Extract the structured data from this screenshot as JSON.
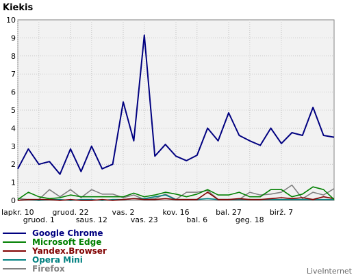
{
  "chart_data": {
    "type": "line",
    "title": "Kiekis",
    "ylim": [
      0,
      10
    ],
    "y_ticks": [
      "0",
      "1",
      "2",
      "3",
      "4",
      "5",
      "6",
      "7",
      "8",
      "9",
      "10"
    ],
    "x_tick_labels": [
      {
        "index": 0,
        "text": "lapkr. 10",
        "row": 1
      },
      {
        "index": 2,
        "text": "gruod. 1",
        "row": 2
      },
      {
        "index": 5,
        "text": "gruod. 22",
        "row": 1
      },
      {
        "index": 7,
        "text": "saus. 12",
        "row": 2
      },
      {
        "index": 10,
        "text": "vas. 2",
        "row": 1
      },
      {
        "index": 12,
        "text": "vas. 23",
        "row": 2
      },
      {
        "index": 15,
        "text": "kov. 16",
        "row": 1
      },
      {
        "index": 17,
        "text": "bal. 6",
        "row": 2
      },
      {
        "index": 20,
        "text": "bal. 27",
        "row": 1
      },
      {
        "index": 22,
        "text": "geg. 18",
        "row": 2
      },
      {
        "index": 25,
        "text": "birž. 7",
        "row": 1
      }
    ],
    "grid": true,
    "series": [
      {
        "name": "Google Chrome",
        "color": "#000080",
        "values": [
          1.75,
          2.85,
          2.0,
          2.15,
          1.45,
          2.85,
          1.6,
          3.0,
          1.75,
          2.0,
          5.45,
          3.3,
          9.15,
          2.45,
          3.1,
          2.45,
          2.2,
          2.5,
          4.0,
          3.3,
          4.85,
          3.6,
          3.3,
          3.05,
          4.0,
          3.15,
          3.75,
          3.6,
          5.15,
          3.6,
          3.5
        ]
      },
      {
        "name": "Microsoft Edge",
        "color": "#008000",
        "values": [
          0.05,
          0.45,
          0.2,
          0.1,
          0.15,
          0.3,
          0.2,
          0.2,
          0.2,
          0.2,
          0.2,
          0.4,
          0.2,
          0.3,
          0.45,
          0.35,
          0.2,
          0.35,
          0.6,
          0.3,
          0.3,
          0.45,
          0.2,
          0.2,
          0.6,
          0.6,
          0.2,
          0.35,
          0.75,
          0.6,
          0.05
        ]
      },
      {
        "name": "Yandex.Browser",
        "color": "#800000",
        "values": [
          0.0,
          0.05,
          0.05,
          0.05,
          0.0,
          0.05,
          0.0,
          0.0,
          0.05,
          0.0,
          0.05,
          0.1,
          0.05,
          0.05,
          0.1,
          0.05,
          0.05,
          0.05,
          0.45,
          0.05,
          0.05,
          0.1,
          0.05,
          0.05,
          0.1,
          0.15,
          0.1,
          0.15,
          0.05,
          0.2,
          0.1
        ]
      },
      {
        "name": "Opera Mini",
        "color": "#008080",
        "values": [
          0.0,
          0.05,
          0.0,
          0.05,
          0.05,
          0.0,
          0.05,
          0.05,
          0.0,
          0.05,
          0.05,
          0.1,
          0.1,
          0.2,
          0.3,
          0.05,
          0.05,
          0.05,
          0.1,
          0.05,
          0.05,
          0.05,
          0.05,
          0.05,
          0.05,
          0.05,
          0.05,
          0.05,
          0.05,
          0.05,
          0.05
        ]
      },
      {
        "name": "Firefox",
        "color": "#808080",
        "values": [
          0.1,
          0.05,
          0.05,
          0.6,
          0.2,
          0.6,
          0.15,
          0.6,
          0.35,
          0.35,
          0.15,
          0.3,
          0.05,
          0.1,
          0.35,
          0.05,
          0.45,
          0.45,
          0.55,
          0.05,
          0.05,
          0.05,
          0.45,
          0.3,
          0.35,
          0.45,
          0.85,
          0.1,
          0.45,
          0.3,
          0.65
        ]
      }
    ]
  },
  "brand": "LiveInternet"
}
